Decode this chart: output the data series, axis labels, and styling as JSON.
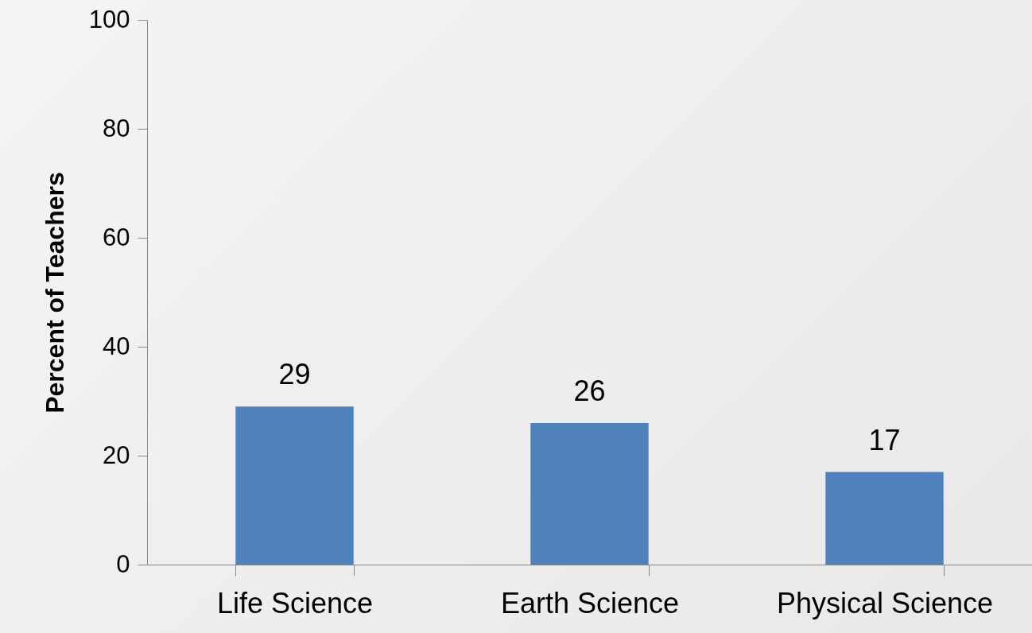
{
  "chart_data": {
    "type": "bar",
    "ylabel": "Percent of Teachers",
    "categories": [
      "Life Science",
      "Earth Science",
      "Physical Science"
    ],
    "values": [
      29,
      26,
      17
    ],
    "color": "#4f81bd",
    "ylim": [
      0,
      100
    ],
    "yticks": [
      0,
      20,
      40,
      60,
      80,
      100
    ],
    "grid": false,
    "data_labels": true
  }
}
